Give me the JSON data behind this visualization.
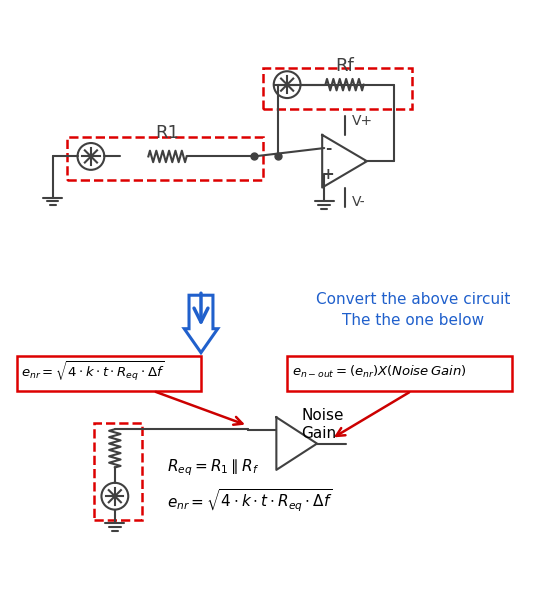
{
  "bg_color": "#ffffff",
  "circuit_color": "#404040",
  "red_color": "#dd0000",
  "blue_color": "#2060cc",
  "arrow_red": "#cc0000",
  "title": "",
  "text_convert": "Convert the above circuit\nThe the one below",
  "text_enr_top": "eₙᵣ = √4·k·t·Rₑᵨ·Δf",
  "text_enout": "eₙ₋ₒᵘₜ = (eₙᵣ)X(Noise Gain)",
  "text_req": "Rₑᵨ = R₁ ‖ Rₔ",
  "text_enr_bot": "eₙᵣ = √4·k·t·Rₑᵨ·Δf",
  "text_noise_gain": "Noise\nGain",
  "text_R1": "R1",
  "text_Rf": "Rf",
  "text_Vplus": "V+",
  "text_Vminus": "V-"
}
